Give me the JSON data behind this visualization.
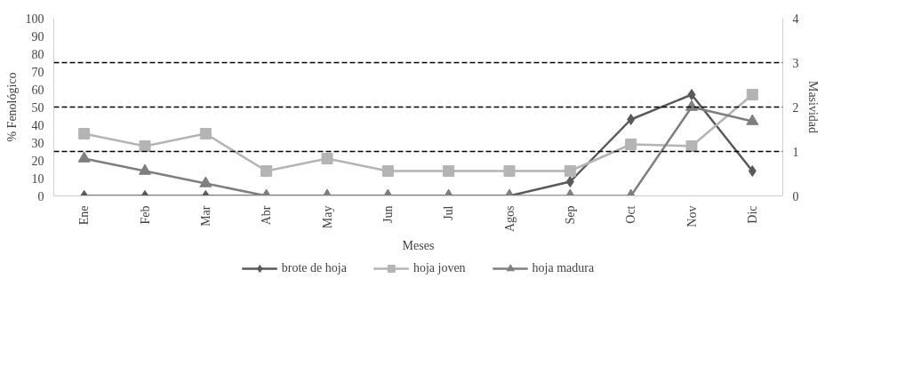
{
  "chart_data": {
    "type": "line",
    "xlabel": "Meses",
    "ylabel": "% Fenológico",
    "y2label": "Masividad",
    "categories": [
      "Ene",
      "Feb",
      "Mar",
      "Abr",
      "May",
      "Jun",
      "Jul",
      "Agos",
      "Sep",
      "Oct",
      "Nov",
      "Dic"
    ],
    "series": [
      {
        "name": "brote de hoja",
        "color": "#595959",
        "marker": "diamond",
        "values": [
          0,
          0,
          0,
          0,
          0,
          0,
          0,
          0,
          8,
          43,
          57,
          14
        ]
      },
      {
        "name": "hoja joven",
        "color": "#b4b4b4",
        "marker": "square",
        "values": [
          35,
          28,
          35,
          14,
          21,
          14,
          14,
          14,
          14,
          29,
          28,
          57
        ]
      },
      {
        "name": "hoja madura",
        "color": "#7f7f7f",
        "marker": "triangle",
        "values": [
          21,
          14,
          7,
          0,
          0,
          0,
          0,
          0,
          0,
          0,
          50,
          42
        ]
      }
    ],
    "ylim": [
      0,
      100
    ],
    "yticks": [
      0,
      10,
      20,
      30,
      40,
      50,
      60,
      70,
      80,
      90,
      100
    ],
    "y2lim": [
      0,
      4
    ],
    "y2ticks": [
      0,
      1,
      2,
      3,
      4
    ],
    "ref_lines": [
      {
        "axis": "y2",
        "value": 1,
        "color": "#000000",
        "line_style": "dashed"
      },
      {
        "axis": "y2",
        "value": 2,
        "color": "#000000",
        "line_style": "dashed"
      },
      {
        "axis": "y2",
        "value": 3,
        "color": "#000000",
        "line_style": "dashed"
      }
    ],
    "grid": false,
    "legend": "bottom",
    "line_style": "solid"
  }
}
